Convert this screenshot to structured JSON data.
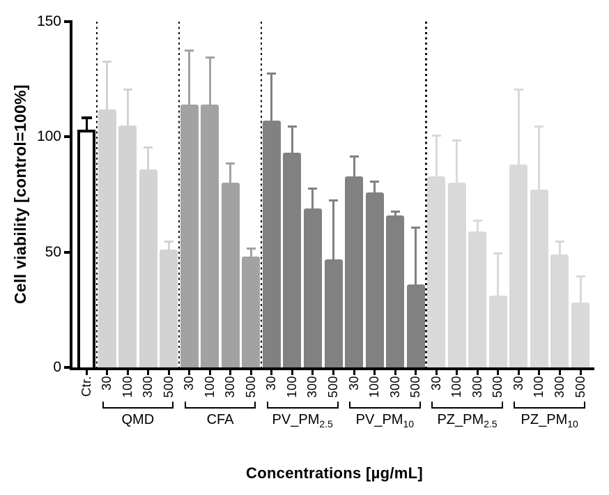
{
  "chart_data": {
    "type": "bar",
    "title": "",
    "ylabel": "Cell viability [control=100%]",
    "xlabel": "Concentrations [µg/mL]",
    "ylim": [
      0,
      150
    ],
    "y_ticks": [
      "0",
      "50",
      "100",
      "150"
    ],
    "grid": false,
    "legend": null,
    "error_bars": "SD, upper only, cap style",
    "control": {
      "label": "Ctr.",
      "value": 103,
      "error": 6,
      "fill": "#ffffff",
      "border_color": "#000000"
    },
    "x_tick_labels_per_group": [
      "30",
      "100",
      "300",
      "500"
    ],
    "groups": [
      {
        "name": "QMD",
        "sub": "",
        "color": "#d3d3d3",
        "values": [
          112,
          105,
          86,
          51
        ],
        "errors": [
          21,
          16,
          10,
          4
        ]
      },
      {
        "name": "CFA",
        "sub": "",
        "color": "#a2a2a2",
        "values": [
          114,
          114,
          80,
          48
        ],
        "errors": [
          24,
          21,
          9,
          4
        ]
      },
      {
        "name": "PV_PM",
        "sub": "2.5",
        "color": "#818181",
        "values": [
          107,
          93,
          69,
          47
        ],
        "errors": [
          21,
          12,
          9,
          26
        ]
      },
      {
        "name": "PV_PM",
        "sub": "10",
        "color": "#818181",
        "values": [
          83,
          76,
          66,
          36
        ],
        "errors": [
          9,
          5,
          2,
          25
        ]
      },
      {
        "name": "PZ_PM",
        "sub": "2.5",
        "color": "#d9d9d9",
        "values": [
          83,
          80,
          59,
          31
        ],
        "errors": [
          18,
          19,
          5,
          19
        ]
      },
      {
        "name": "PZ_PM",
        "sub": "10",
        "color": "#d9d9d9",
        "values": [
          88,
          77,
          49,
          28
        ],
        "errors": [
          33,
          28,
          6,
          12
        ]
      }
    ],
    "separators_after_bar_index": [
      0,
      4,
      8,
      16
    ],
    "axis_color": "#000000"
  }
}
